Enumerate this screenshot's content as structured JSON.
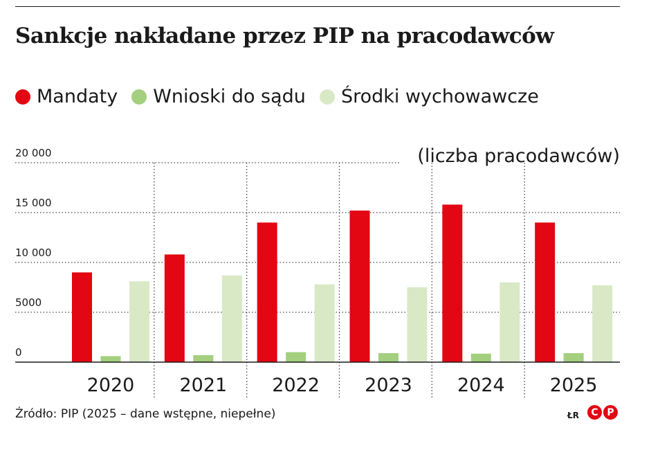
{
  "title": "Sankcje nakładane przez PIP na pracodawców",
  "legend": [
    {
      "label": "Mandaty",
      "color": "#e30613"
    },
    {
      "label": "Wnioski do sądu",
      "color": "#a3cf7f"
    },
    {
      "label": "Środki wychowawcze",
      "color": "#d9e9c6"
    }
  ],
  "source": "Źródło: PIP (2025 – dane wstępne, niepełne)",
  "credit": "ŁR",
  "logo": [
    "C",
    "P"
  ],
  "chart_data": {
    "type": "bar",
    "unit_label": "(liczba pracodawców)",
    "categories": [
      "2020",
      "2021",
      "2022",
      "2023",
      "2024",
      "2025"
    ],
    "series": [
      {
        "name": "Mandaty",
        "color": "#e30613",
        "values": [
          9000,
          10800,
          14000,
          15200,
          15800,
          14000
        ]
      },
      {
        "name": "Wnioski do sądu",
        "color": "#a3cf7f",
        "values": [
          600,
          700,
          1000,
          900,
          850,
          900
        ]
      },
      {
        "name": "Środki wychowawcze",
        "color": "#d9e9c6",
        "values": [
          8100,
          8700,
          7800,
          7500,
          8000,
          7700
        ]
      }
    ],
    "yticks": [
      0,
      5000,
      10000,
      15000,
      20000
    ],
    "ytick_labels": [
      "0",
      "5000",
      "10 000",
      "15 000",
      "20 000"
    ],
    "ylim": [
      0,
      20000
    ],
    "grid": "dotted horizontal and vertical"
  }
}
